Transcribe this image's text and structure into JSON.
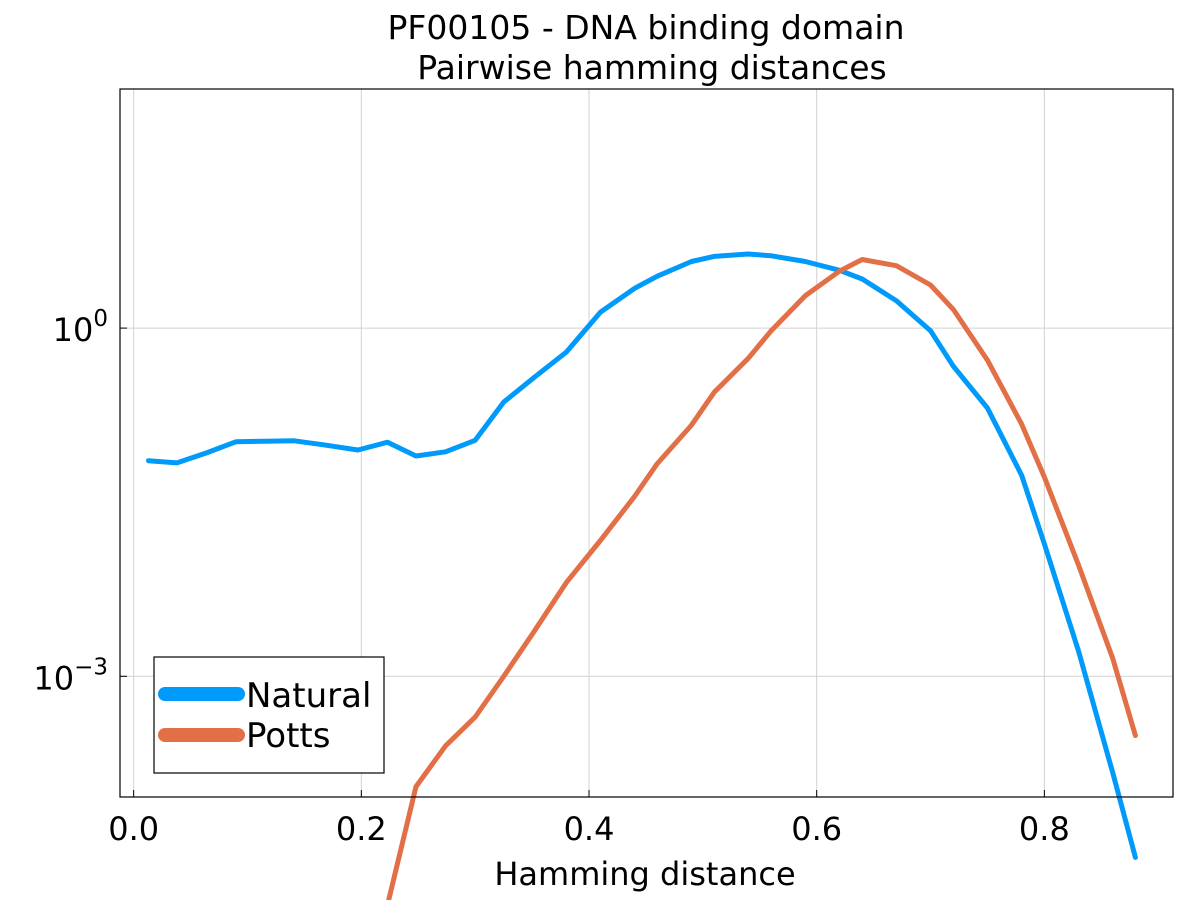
{
  "chart_data": {
    "type": "line",
    "title": "PF00105 - DNA binding domain",
    "subtitle": "Pairwise hamming distances",
    "xlabel": "Hamming distance",
    "ylabel": "",
    "xlim": [
      -0.012,
      0.913
    ],
    "ylim_log10": [
      -4.04,
      2.06
    ],
    "yscale": "log",
    "grid": true,
    "legend_position": "bottom-left",
    "x_ticks": [
      {
        "value": 0.0,
        "label": "0.0"
      },
      {
        "value": 0.2,
        "label": "0.2"
      },
      {
        "value": 0.4,
        "label": "0.4"
      },
      {
        "value": 0.6,
        "label": "0.6"
      },
      {
        "value": 0.8,
        "label": "0.8"
      }
    ],
    "y_ticks": [
      {
        "exponent": 0,
        "base": "10",
        "sup": "0"
      },
      {
        "exponent": -3,
        "base": "10",
        "sup": "−3"
      }
    ],
    "series": [
      {
        "name": "Natural",
        "color": "#009AFA",
        "x": [
          0.013,
          0.038,
          0.064,
          0.09,
          0.115,
          0.141,
          0.166,
          0.197,
          0.223,
          0.248,
          0.274,
          0.3,
          0.325,
          0.351,
          0.38,
          0.41,
          0.44,
          0.46,
          0.49,
          0.51,
          0.54,
          0.56,
          0.59,
          0.62,
          0.64,
          0.67,
          0.7,
          0.72,
          0.75,
          0.78,
          0.8,
          0.83,
          0.86,
          0.88
        ],
        "y": [
          0.072,
          0.069,
          0.084,
          0.105,
          0.106,
          0.107,
          0.099,
          0.089,
          0.104,
          0.079,
          0.086,
          0.108,
          0.23,
          0.37,
          0.62,
          1.37,
          2.2,
          2.8,
          3.75,
          4.15,
          4.35,
          4.2,
          3.75,
          3.15,
          2.65,
          1.72,
          0.95,
          0.47,
          0.205,
          0.054,
          0.0138,
          0.00165,
          0.000148,
          2.75e-05
        ]
      },
      {
        "name": "Potts",
        "color": "#E26F46",
        "x": [
          0.223,
          0.248,
          0.274,
          0.3,
          0.325,
          0.351,
          0.38,
          0.41,
          0.44,
          0.46,
          0.49,
          0.51,
          0.54,
          0.56,
          0.59,
          0.62,
          0.64,
          0.67,
          0.7,
          0.72,
          0.75,
          0.78,
          0.8,
          0.83,
          0.86,
          0.88
        ],
        "y": [
          1.07e-05,
          0.000112,
          0.000252,
          0.000446,
          0.000996,
          0.00237,
          0.0064,
          0.0148,
          0.0354,
          0.068,
          0.146,
          0.28,
          0.55,
          0.95,
          1.9,
          3.1,
          3.9,
          3.45,
          2.35,
          1.45,
          0.53,
          0.149,
          0.052,
          0.0091,
          0.00143,
          0.000309
        ]
      }
    ]
  }
}
